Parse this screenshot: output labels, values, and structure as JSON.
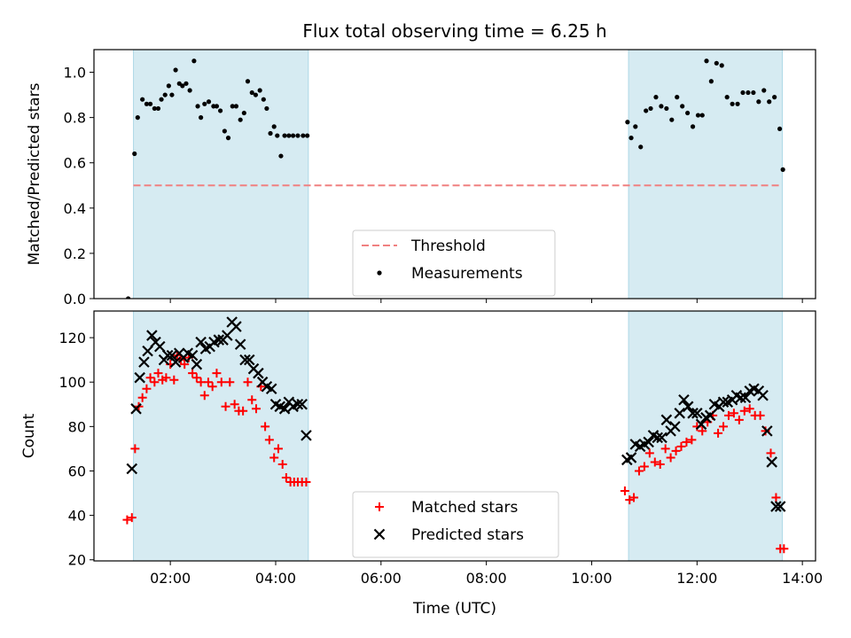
{
  "chart_data": {
    "type": "scatter",
    "title": "Flux total observing time = 6.25 h",
    "xlabel": "Time (UTC)",
    "x_unit": "hours UTC",
    "xlim": [
      0.55,
      14.25
    ],
    "x_ticks": [
      {
        "value": 2,
        "label": "02:00"
      },
      {
        "value": 4,
        "label": "04:00"
      },
      {
        "value": 6,
        "label": "06:00"
      },
      {
        "value": 8,
        "label": "08:00"
      },
      {
        "value": 10,
        "label": "10:00"
      },
      {
        "value": 12,
        "label": "12:00"
      },
      {
        "value": 14,
        "label": "14:00"
      }
    ],
    "shaded_intervals": [
      [
        1.3,
        4.62
      ],
      [
        10.7,
        13.62
      ]
    ],
    "shade_color": "#add8e6",
    "panels": [
      {
        "ylabel": "Matched/Predicted stars",
        "ylim": [
          0,
          1.1
        ],
        "y_ticks": [
          {
            "value": 0.0,
            "label": "0.0"
          },
          {
            "value": 0.2,
            "label": "0.2"
          },
          {
            "value": 0.4,
            "label": "0.4"
          },
          {
            "value": 0.6,
            "label": "0.6"
          },
          {
            "value": 0.8,
            "label": "0.8"
          },
          {
            "value": 1.0,
            "label": "1.0"
          }
        ],
        "legend_position": "lower-center",
        "lines": [
          {
            "name": "Threshold",
            "x": [
              1.3,
              13.62
            ],
            "y": [
              0.5,
              0.5
            ],
            "color": "#f08080",
            "dash": true
          }
        ],
        "series": [
          {
            "name": "Measurements",
            "marker": "dot",
            "color": "#000000",
            "x": [
              1.2,
              1.32,
              1.38,
              1.47,
              1.55,
              1.62,
              1.7,
              1.77,
              1.83,
              1.9,
              1.97,
              2.03,
              2.1,
              2.17,
              2.23,
              2.3,
              2.37,
              2.45,
              2.52,
              2.58,
              2.65,
              2.73,
              2.82,
              2.88,
              2.95,
              3.03,
              3.1,
              3.18,
              3.25,
              3.33,
              3.4,
              3.47,
              3.55,
              3.62,
              3.7,
              3.77,
              3.83,
              3.9,
              3.97,
              4.03,
              4.1,
              4.17,
              4.25,
              4.33,
              4.42,
              4.52,
              4.6,
              10.68,
              10.75,
              10.83,
              10.93,
              11.03,
              11.12,
              11.22,
              11.32,
              11.42,
              11.52,
              11.62,
              11.72,
              11.82,
              11.92,
              12.02,
              12.1,
              12.18,
              12.27,
              12.37,
              12.47,
              12.57,
              12.67,
              12.77,
              12.87,
              12.97,
              13.07,
              13.17,
              13.27,
              13.37,
              13.47,
              13.57,
              13.63
            ],
            "y": [
              0.0,
              0.64,
              0.8,
              0.88,
              0.86,
              0.86,
              0.84,
              0.84,
              0.88,
              0.9,
              0.94,
              0.9,
              1.01,
              0.95,
              0.94,
              0.95,
              0.92,
              1.05,
              0.85,
              0.8,
              0.86,
              0.87,
              0.85,
              0.85,
              0.83,
              0.74,
              0.71,
              0.85,
              0.85,
              0.79,
              0.82,
              0.96,
              0.91,
              0.9,
              0.92,
              0.88,
              0.84,
              0.73,
              0.76,
              0.72,
              0.63,
              0.72,
              0.72,
              0.72,
              0.72,
              0.72,
              0.72,
              0.78,
              0.71,
              0.76,
              0.67,
              0.83,
              0.84,
              0.89,
              0.85,
              0.84,
              0.79,
              0.89,
              0.85,
              0.82,
              0.76,
              0.81,
              0.81,
              1.05,
              0.96,
              1.04,
              1.03,
              0.89,
              0.86,
              0.86,
              0.91,
              0.91,
              0.91,
              0.87,
              0.92,
              0.87,
              0.89,
              0.75,
              0.57
            ]
          }
        ]
      },
      {
        "ylabel": "Count",
        "ylim": [
          19.5,
          132
        ],
        "y_ticks": [
          {
            "value": 20,
            "label": "20"
          },
          {
            "value": 40,
            "label": "40"
          },
          {
            "value": 60,
            "label": "60"
          },
          {
            "value": 80,
            "label": "80"
          },
          {
            "value": 100,
            "label": "100"
          },
          {
            "value": 120,
            "label": "120"
          }
        ],
        "legend_position": "lower-center",
        "series": [
          {
            "name": "Matched stars",
            "marker": "plus",
            "color": "#ff0000",
            "x": [
              1.18,
              1.27,
              1.33,
              1.4,
              1.47,
              1.55,
              1.62,
              1.7,
              1.77,
              1.85,
              1.92,
              2.0,
              2.07,
              2.13,
              2.2,
              2.27,
              2.35,
              2.42,
              2.5,
              2.58,
              2.65,
              2.72,
              2.8,
              2.88,
              2.97,
              3.05,
              3.13,
              3.22,
              3.3,
              3.38,
              3.47,
              3.55,
              3.63,
              3.72,
              3.8,
              3.88,
              3.97,
              4.05,
              4.13,
              4.2,
              4.28,
              4.35,
              4.42,
              4.5,
              4.58,
              10.63,
              10.72,
              10.8,
              10.9,
              11.0,
              11.1,
              11.2,
              11.3,
              11.4,
              11.5,
              11.6,
              11.7,
              11.8,
              11.9,
              12.0,
              12.1,
              12.2,
              12.3,
              12.4,
              12.5,
              12.6,
              12.7,
              12.8,
              12.9,
              13.0,
              13.1,
              13.2,
              13.3,
              13.4,
              13.5,
              13.58,
              13.65
            ],
            "y": [
              38,
              39,
              70,
              89,
              93,
              97,
              102,
              100,
              104,
              101,
              102,
              108,
              101,
              112,
              110,
              108,
              111,
              104,
              102,
              100,
              94,
              100,
              98,
              104,
              100,
              89,
              100,
              90,
              87,
              87,
              100,
              92,
              88,
              98,
              80,
              74,
              66,
              70,
              63,
              57,
              55,
              55,
              55,
              55,
              55,
              51,
              47,
              48,
              60,
              62,
              68,
              64,
              63,
              70,
              66,
              69,
              71,
              73,
              74,
              80,
              78,
              82,
              85,
              77,
              80,
              85,
              86,
              83,
              87,
              88,
              85,
              85,
              78,
              68,
              48,
              25,
              25
            ],
            "hidden_tail_note": ""
          },
          {
            "name": "Predicted stars",
            "marker": "x",
            "color": "#000000",
            "x": [
              1.27,
              1.35,
              1.42,
              1.5,
              1.57,
              1.65,
              1.72,
              1.8,
              1.88,
              1.95,
              2.03,
              2.1,
              2.17,
              2.25,
              2.33,
              2.42,
              2.5,
              2.58,
              2.67,
              2.75,
              2.83,
              2.92,
              3.0,
              3.08,
              3.17,
              3.25,
              3.33,
              3.42,
              3.5,
              3.58,
              3.67,
              3.75,
              3.83,
              3.92,
              4.0,
              4.08,
              4.17,
              4.25,
              4.33,
              4.42,
              4.5,
              4.58,
              10.67,
              10.75,
              10.83,
              10.92,
              11.0,
              11.08,
              11.17,
              11.25,
              11.33,
              11.42,
              11.5,
              11.58,
              11.67,
              11.75,
              11.83,
              11.92,
              12.0,
              12.08,
              12.17,
              12.25,
              12.33,
              12.42,
              12.5,
              12.58,
              12.67,
              12.75,
              12.83,
              12.92,
              13.0,
              13.08,
              13.17,
              13.25,
              13.33,
              13.42,
              13.5,
              13.58
            ],
            "y": [
              61,
              88,
              102,
              109,
              114,
              121,
              118,
              116,
              110,
              112,
              112,
              109,
              113,
              111,
              113,
              112,
              108,
              118,
              115,
              116,
              118,
              119,
              119,
              121,
              127,
              125,
              117,
              110,
              110,
              106,
              104,
              100,
              98,
              97,
              90,
              89,
              88,
              91,
              89,
              90,
              90,
              76,
              65,
              66,
              72,
              71,
              72,
              73,
              76,
              75,
              75,
              83,
              78,
              80,
              86,
              92,
              89,
              86,
              86,
              81,
              84,
              85,
              90,
              89,
              91,
              91,
              92,
              94,
              93,
              93,
              96,
              97,
              96,
              94,
              78,
              64,
              44,
              44
            ]
          }
        ]
      }
    ]
  }
}
